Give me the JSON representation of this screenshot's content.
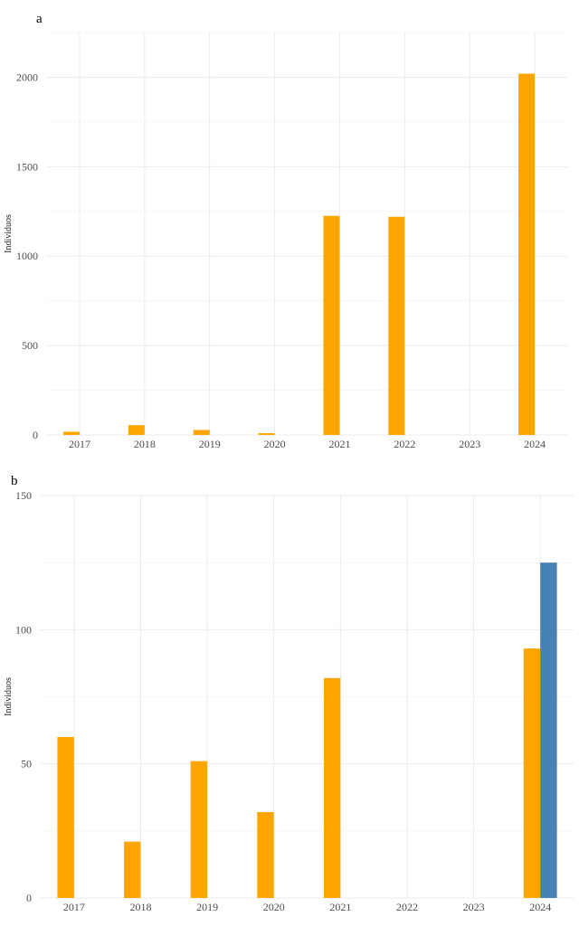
{
  "chart_data": [
    {
      "type": "bar",
      "panel_label": "a",
      "ylabel": "Individuos",
      "xlabel": "",
      "categories": [
        "2017",
        "2018",
        "2019",
        "2020",
        "2021",
        "2022",
        "2023",
        "2024"
      ],
      "series": [
        {
          "color": "#FFA500",
          "values": [
            18,
            55,
            28,
            10,
            1225,
            1220,
            0,
            2020
          ]
        },
        {
          "color": "#4682B4",
          "values": [
            0,
            0,
            0,
            0,
            0,
            0,
            0,
            0
          ]
        }
      ],
      "ylim": [
        0,
        2250
      ],
      "yticks": [
        0,
        500,
        1000,
        1500,
        2000
      ],
      "grid": true
    },
    {
      "type": "bar",
      "panel_label": "b",
      "ylabel": "Individuos",
      "xlabel": "",
      "categories": [
        "2017",
        "2018",
        "2019",
        "2020",
        "2021",
        "2022",
        "2023",
        "2024"
      ],
      "series": [
        {
          "color": "#FFA500",
          "values": [
            60,
            21,
            51,
            32,
            82,
            0,
            0,
            93
          ]
        },
        {
          "color": "#4682B4",
          "values": [
            0,
            0,
            0,
            0,
            0,
            0,
            0,
            125
          ]
        }
      ],
      "ylim": [
        0,
        150
      ],
      "yticks": [
        0,
        50,
        100,
        150
      ],
      "grid": true
    }
  ]
}
